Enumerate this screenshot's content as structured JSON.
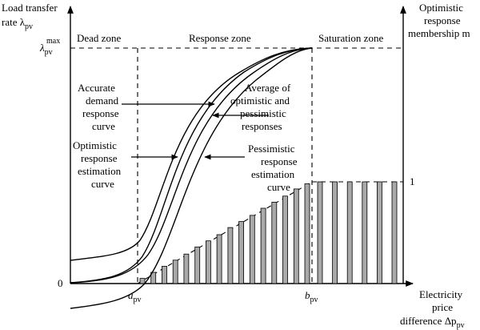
{
  "y_axis_left": {
    "label_line1": "Load transfer",
    "label_line2": "rate λ",
    "label_sub": "pv",
    "max_label": "λ",
    "max_sub": "pv",
    "max_sup": "max",
    "zero_label": "0"
  },
  "y_axis_right": {
    "label_line1": "Optimistic",
    "label_line2": "response",
    "label_line3": "membership m",
    "one_label": "1"
  },
  "x_axis": {
    "label_line1": "Electricity",
    "label_line2": "price",
    "label_line3": "difference Δp",
    "label_sub": "pv",
    "a_label": "a",
    "a_sub": "pv",
    "b_label": "b",
    "b_sub": "pv"
  },
  "zones": {
    "dead": "Dead zone",
    "response": "Response zone",
    "saturation": "Saturation zone"
  },
  "annotations": {
    "accurate": [
      "Accurate",
      "demand",
      "response",
      "curve"
    ],
    "optimistic": [
      "Optimistic",
      "response",
      "estimation",
      "curve"
    ],
    "average": [
      "Average of",
      "optimistic and",
      "pessimistic",
      "responses"
    ],
    "pessimistic": [
      "Pessimistic",
      "response",
      "estimation",
      "curve"
    ]
  },
  "membership": {
    "response_zone_bars": [
      0.05,
      0.11,
      0.17,
      0.23,
      0.29,
      0.36,
      0.42,
      0.48,
      0.55,
      0.61,
      0.67,
      0.74,
      0.8,
      0.86,
      0.93,
      0.98
    ],
    "saturation_zone_bars": [
      1,
      1,
      1,
      1,
      1,
      1
    ]
  }
}
